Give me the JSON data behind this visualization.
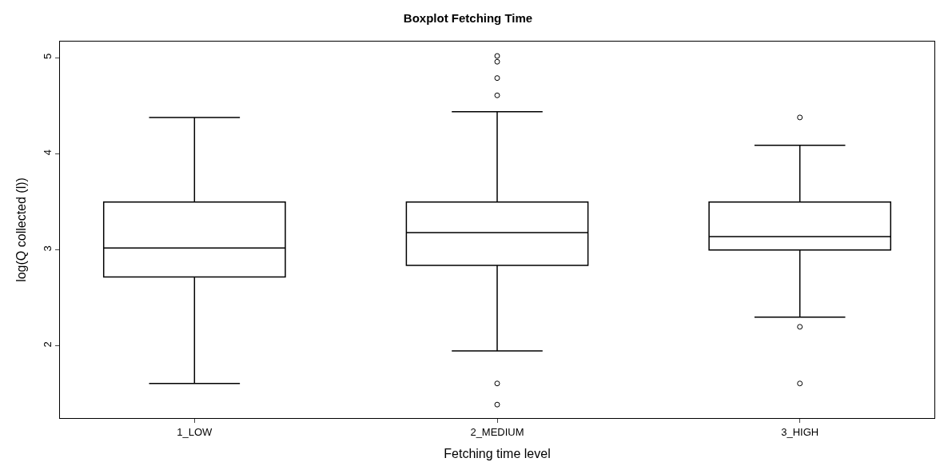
{
  "chart_data": {
    "type": "box",
    "title": "Boxplot Fetching Time",
    "xlabel": "Fetching time level",
    "ylabel": "log(Q collected (l))",
    "categories": [
      "1_LOW",
      "2_MEDIUM",
      "3_HIGH"
    ],
    "boxes": [
      {
        "low": 1.61,
        "q1": 2.72,
        "median": 3.02,
        "q3": 3.5,
        "high": 4.38
      },
      {
        "low": 1.95,
        "q1": 2.84,
        "median": 3.18,
        "q3": 3.5,
        "high": 4.44,
        "outliers": [
          5.02,
          4.96,
          4.79,
          4.61,
          1.61,
          1.39
        ]
      },
      {
        "low": 2.3,
        "q1": 3.0,
        "median": 3.14,
        "q3": 3.5,
        "high": 4.09,
        "outliers": [
          4.38,
          2.2,
          1.61
        ]
      }
    ],
    "ylim": [
      1.25,
      5.17
    ],
    "yticks": [
      2,
      3,
      4,
      5
    ]
  }
}
